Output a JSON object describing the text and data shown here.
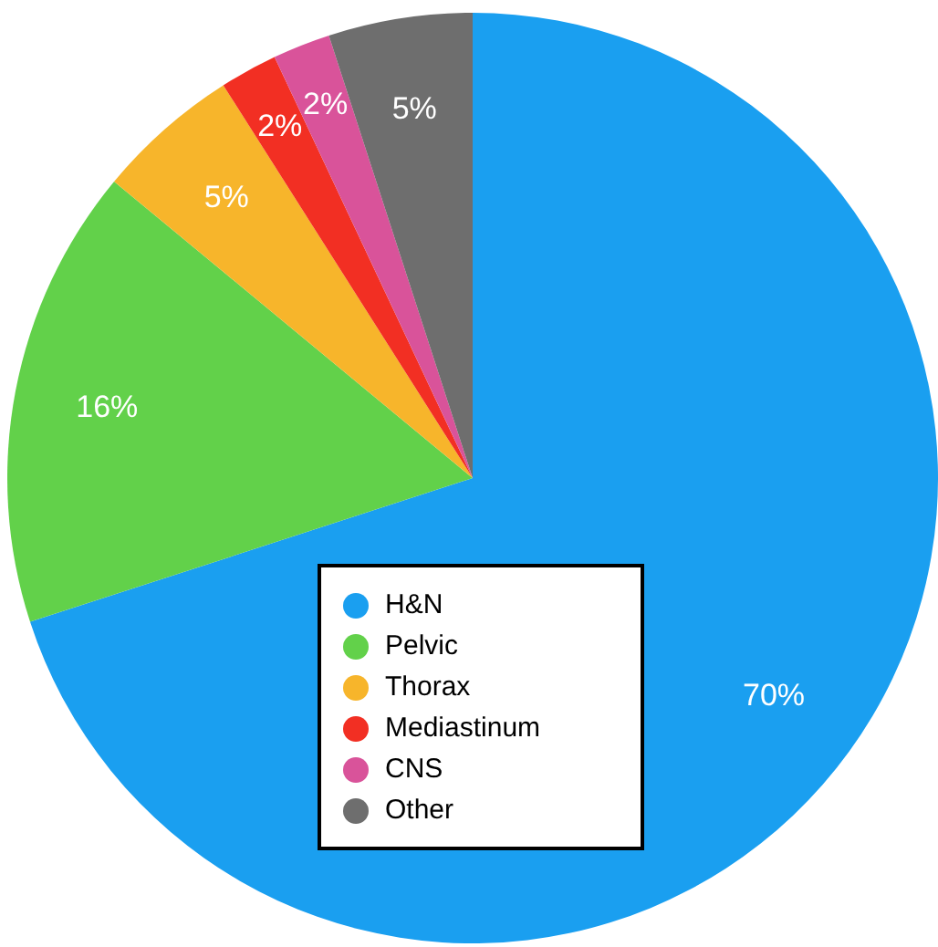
{
  "chart_data": {
    "type": "pie",
    "categories": [
      "H&N",
      "Pelvic",
      "Thorax",
      "Mediastinum",
      "CNS",
      "Other"
    ],
    "values": [
      70,
      16,
      5,
      2,
      2,
      5
    ],
    "colors": [
      "#1a9ff0",
      "#62d14a",
      "#f7b52b",
      "#f22f23",
      "#d9539a",
      "#6e6e6e"
    ],
    "value_labels": [
      "70%",
      "16%",
      "5%",
      "2%",
      "2%",
      "5%"
    ],
    "legend": "bottom"
  }
}
